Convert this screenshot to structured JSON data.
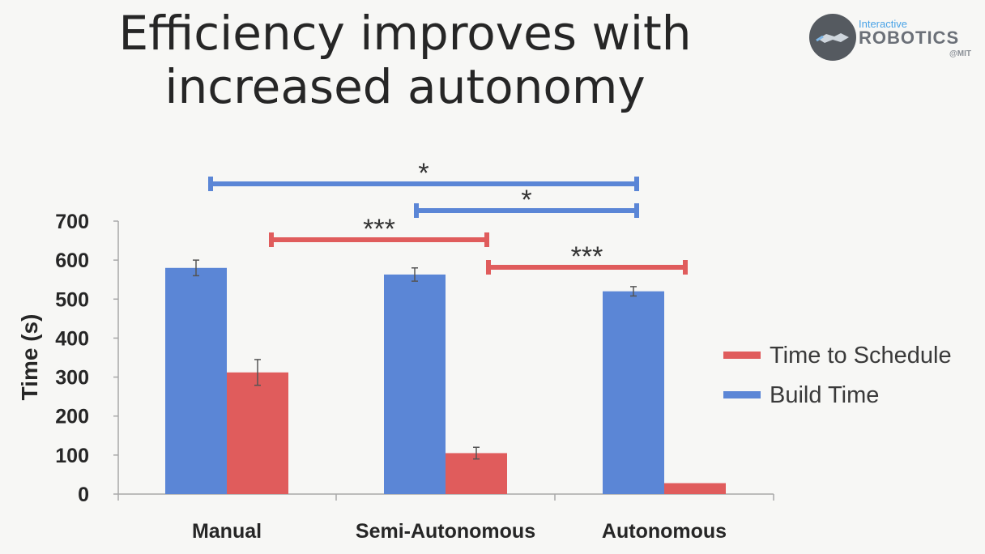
{
  "slide": {
    "title_line1": "Efficiency improves with",
    "title_line2": "increased autonomy",
    "logo": {
      "top_text": "Interactive",
      "main_text": "ROBOTICS",
      "sub_text": "@MIT"
    }
  },
  "colors": {
    "time_to_schedule": "#e05c5c",
    "build_time": "#5b86d6",
    "text": "#262626"
  },
  "chart_data": {
    "type": "bar",
    "categories": [
      "Manual",
      "Semi-Autonomous",
      "Autonomous"
    ],
    "series": [
      {
        "name": "Build Time",
        "values": [
          580,
          563,
          520
        ],
        "errors": [
          20,
          17,
          12
        ],
        "color": "#5b86d6"
      },
      {
        "name": "Time to Schedule",
        "values": [
          312,
          105,
          28
        ],
        "errors": [
          33,
          15,
          0
        ],
        "color": "#e05c5c"
      }
    ],
    "legend_order": [
      "Time to Schedule",
      "Build Time"
    ],
    "legend_position": "right",
    "xlabel": "",
    "ylabel": "Time (s)",
    "ylim": [
      0,
      700
    ],
    "yticks": [
      "0",
      "100",
      "200",
      "300",
      "400",
      "500",
      "600",
      "700"
    ],
    "grid": false,
    "significance": [
      {
        "series": "Build Time",
        "from": "Manual",
        "to": "Autonomous",
        "label": "*"
      },
      {
        "series": "Build Time",
        "from": "Semi-Autonomous",
        "to": "Autonomous",
        "label": "*"
      },
      {
        "series": "Time to Schedule",
        "from": "Manual",
        "to": "Semi-Autonomous",
        "label": "***"
      },
      {
        "series": "Time to Schedule",
        "from": "Semi-Autonomous",
        "to": "Autonomous",
        "label": "***"
      }
    ]
  }
}
